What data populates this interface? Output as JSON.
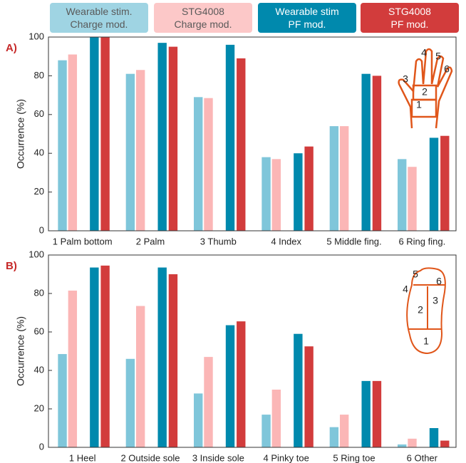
{
  "chart_data": [
    {
      "type": "bar",
      "panel_label": "A)",
      "ylabel": "Occurrence (%)",
      "categories": [
        "1 Palm bottom",
        "2 Palm",
        "3 Thumb",
        "4 Index",
        "5 Middle fing.",
        "6 Ring fing."
      ],
      "series": [
        {
          "name": "Wearable stim.\nCharge mod.",
          "color": "#7fc6da",
          "values": [
            88,
            81,
            69,
            38,
            54,
            37
          ]
        },
        {
          "name": "STG4008\nCharge mod.",
          "color": "#fbb6b6",
          "values": [
            91,
            83,
            68.5,
            37,
            54,
            33
          ]
        },
        {
          "name": "Wearable stim\nPF mod.",
          "color": "#0089ad",
          "values": [
            100,
            97,
            96,
            40,
            81,
            48
          ]
        },
        {
          "name": "STG4008\nPF mod.",
          "color": "#d23c3c",
          "values": [
            100,
            95,
            89,
            43.5,
            80,
            49
          ]
        }
      ],
      "ylim": [
        0,
        100
      ],
      "yticks": [
        0,
        20,
        40,
        60,
        80,
        100
      ],
      "diagram_labels": [
        "1",
        "2",
        "3",
        "4",
        "5",
        "6"
      ]
    },
    {
      "type": "bar",
      "panel_label": "B)",
      "ylabel": "Occurrence (%)",
      "categories": [
        "1 Heel",
        "2 Outside sole",
        "3 Inside sole",
        "4 Pinky toe",
        "5 Ring toe",
        "6 Other"
      ],
      "series": [
        {
          "color": "#7fc6da",
          "values": [
            48.5,
            46,
            28,
            17,
            10.5,
            1.5
          ]
        },
        {
          "color": "#fbb6b6",
          "values": [
            81.5,
            73.5,
            47,
            30,
            17,
            4.5
          ]
        },
        {
          "color": "#0089ad",
          "values": [
            93.5,
            93.5,
            63.5,
            59,
            34.5,
            10
          ]
        },
        {
          "color": "#d23c3c",
          "values": [
            94.5,
            90,
            65.5,
            52.5,
            34.5,
            3.5
          ]
        }
      ],
      "ylim": [
        0,
        100
      ],
      "yticks": [
        0,
        20,
        40,
        60,
        80,
        100
      ],
      "diagram_labels": [
        "1",
        "2",
        "3",
        "4",
        "5",
        "6"
      ]
    }
  ]
}
